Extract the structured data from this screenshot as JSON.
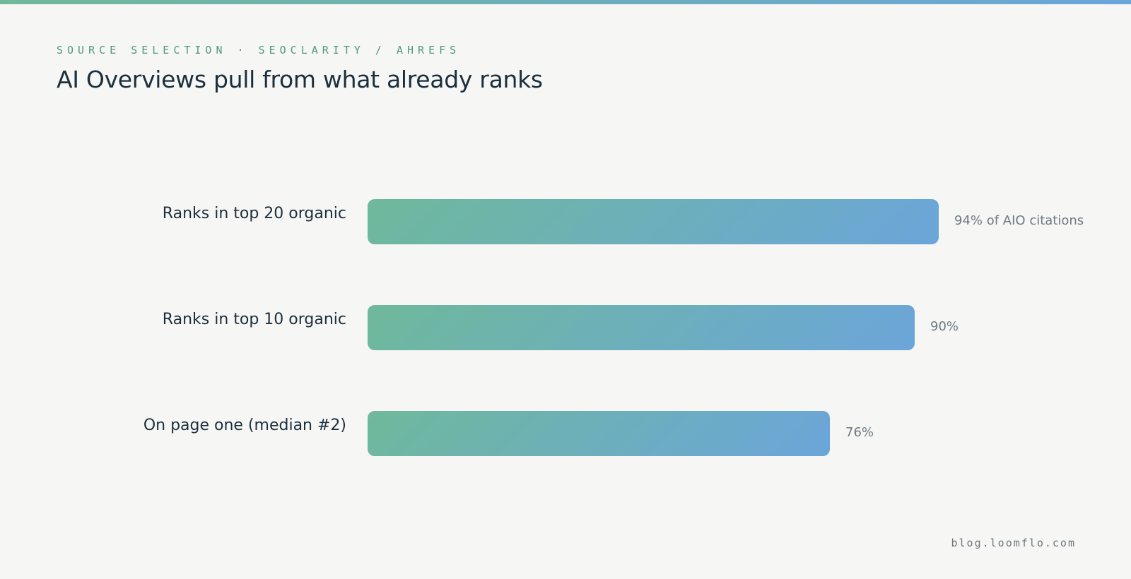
{
  "header": {
    "eyebrow": "SOURCE SELECTION · SEOCLARITY / AHREFS",
    "title": "AI Overviews pull from what already ranks"
  },
  "footer": {
    "text": "blog.loomflo.com"
  },
  "colors": {
    "accent_green": "#6fb99b",
    "accent_blue": "#6aa5da",
    "background": "#f6f6f4",
    "text_dark": "#1c2f3d"
  },
  "chart_data": {
    "type": "bar",
    "orientation": "horizontal",
    "categories": [
      "Ranks in top 20 organic",
      "Ranks in top 10 organic",
      "On page one (median #2)"
    ],
    "values": [
      94,
      90,
      76
    ],
    "value_labels": [
      "94% of AIO citations",
      "90%",
      "76%"
    ],
    "xlim": [
      0,
      100
    ],
    "grid": false,
    "legend": "none"
  }
}
